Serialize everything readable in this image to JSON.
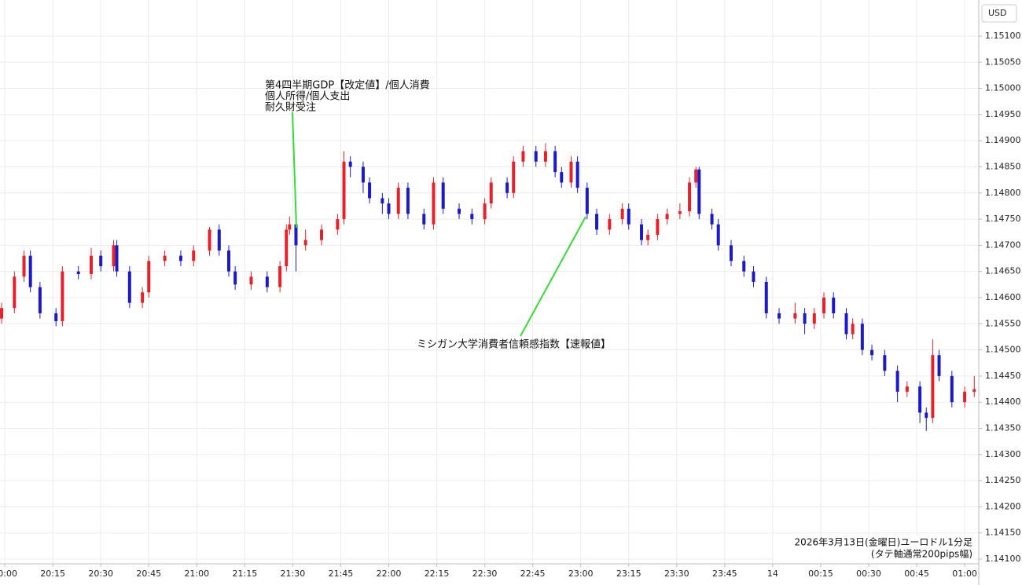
{
  "chart_data": {
    "type": "candlestick",
    "currency": "USD",
    "up_color": "#e8202a",
    "down_color": "#1a1ac8",
    "grid": true,
    "xlim": [
      -1.5,
      304.4
    ],
    "ylim": [
      1.14091,
      1.15169
    ],
    "xticks": [
      {
        "value": 0,
        "label": "20:00"
      },
      {
        "value": 15,
        "label": "20:15"
      },
      {
        "value": 30,
        "label": "20:30"
      },
      {
        "value": 45,
        "label": "20:45"
      },
      {
        "value": 60,
        "label": "21:00"
      },
      {
        "value": 75,
        "label": "21:15"
      },
      {
        "value": 90,
        "label": "21:30"
      },
      {
        "value": 105,
        "label": "21:45"
      },
      {
        "value": 120,
        "label": "22:00"
      },
      {
        "value": 135,
        "label": "22:15"
      },
      {
        "value": 150,
        "label": "22:30"
      },
      {
        "value": 165,
        "label": "22:45"
      },
      {
        "value": 180,
        "label": "23:00"
      },
      {
        "value": 195,
        "label": "23:15"
      },
      {
        "value": 210,
        "label": "23:30"
      },
      {
        "value": 225,
        "label": "23:45"
      },
      {
        "value": 240,
        "label": "14"
      },
      {
        "value": 255,
        "label": "00:15"
      },
      {
        "value": 270,
        "label": "00:30"
      },
      {
        "value": 285,
        "label": "00:45"
      },
      {
        "value": 300,
        "label": "01:00"
      }
    ],
    "yticks": [
      {
        "value": 1.141,
        "label": "1.14100"
      },
      {
        "value": 1.1415,
        "label": "1.14150"
      },
      {
        "value": 1.142,
        "label": "1.14200"
      },
      {
        "value": 1.1425,
        "label": "1.14250"
      },
      {
        "value": 1.143,
        "label": "1.14300"
      },
      {
        "value": 1.1435,
        "label": "1.14350"
      },
      {
        "value": 1.144,
        "label": "1.14400"
      },
      {
        "value": 1.1445,
        "label": "1.14450"
      },
      {
        "value": 1.145,
        "label": "1.14500"
      },
      {
        "value": 1.1455,
        "label": "1.14550"
      },
      {
        "value": 1.146,
        "label": "1.14600"
      },
      {
        "value": 1.1465,
        "label": "1.14650"
      },
      {
        "value": 1.147,
        "label": "1.14700"
      },
      {
        "value": 1.1475,
        "label": "1.14750"
      },
      {
        "value": 1.148,
        "label": "1.14800"
      },
      {
        "value": 1.1485,
        "label": "1.14850"
      },
      {
        "value": 1.149,
        "label": "1.14900"
      },
      {
        "value": 1.1495,
        "label": "1.14950"
      },
      {
        "value": 1.15,
        "label": "1.15000"
      },
      {
        "value": 1.1505,
        "label": "1.15050"
      },
      {
        "value": 1.151,
        "label": "1.15100"
      }
    ],
    "x": [
      -1,
      3,
      6,
      8,
      11,
      16,
      18,
      23,
      27,
      30,
      34,
      35,
      39,
      43,
      45,
      50,
      55,
      59,
      64,
      67,
      70,
      72,
      77,
      82,
      86,
      88,
      89,
      91,
      94,
      99,
      104,
      106,
      108,
      112,
      114,
      118,
      120,
      123,
      126,
      131,
      134,
      137,
      142,
      146,
      150,
      152,
      157,
      159,
      162,
      166,
      169,
      172,
      174,
      177,
      179,
      182,
      185,
      189,
      193,
      195,
      199,
      201,
      204,
      207,
      211,
      214,
      216,
      217,
      221,
      223,
      227,
      231,
      234,
      238,
      242,
      247,
      250,
      253,
      256,
      259,
      263,
      265,
      268,
      271,
      275,
      279,
      282,
      286,
      288,
      290,
      292,
      296,
      300,
      303
    ],
    "open": [
      1.1456,
      1.1458,
      1.1464,
      1.1468,
      1.1462,
      1.1457,
      1.14555,
      1.1465,
      1.14645,
      1.1468,
      1.1466,
      1.147,
      1.1465,
      1.1459,
      1.1461,
      1.1467,
      1.1468,
      1.1467,
      1.1469,
      1.1473,
      1.1469,
      1.1465,
      1.14625,
      1.1464,
      1.1462,
      1.1466,
      1.1473,
      1.1474,
      1.147,
      1.1471,
      1.1473,
      1.1475,
      1.1486,
      1.1485,
      1.1482,
      1.1479,
      1.1478,
      1.1476,
      1.1481,
      1.1476,
      1.1474,
      1.1482,
      1.1477,
      1.1476,
      1.1475,
      1.1478,
      1.1482,
      1.148,
      1.1486,
      1.1488,
      1.1486,
      1.1488,
      1.1484,
      1.1482,
      1.1486,
      1.1481,
      1.1476,
      1.1473,
      1.1475,
      1.1477,
      1.1474,
      1.1471,
      1.1472,
      1.1475,
      1.1476,
      1.14765,
      1.1482,
      1.14845,
      1.1476,
      1.1474,
      1.147,
      1.1467,
      1.1465,
      1.1463,
      1.1457,
      1.1456,
      1.1457,
      1.1455,
      1.1457,
      1.146,
      1.1457,
      1.1453,
      1.1455,
      1.145,
      1.1449,
      1.1446,
      1.1442,
      1.1443,
      1.1438,
      1.1437,
      1.1449,
      1.1445,
      1.144,
      1.1442
    ],
    "high": [
      1.1459,
      1.1465,
      1.1469,
      1.1469,
      1.1463,
      1.1458,
      1.1466,
      1.1466,
      1.14695,
      1.1469,
      1.1471,
      1.1471,
      1.1466,
      1.1462,
      1.1468,
      1.1469,
      1.1469,
      1.147,
      1.14735,
      1.1474,
      1.147,
      1.1466,
      1.1465,
      1.1465,
      1.1467,
      1.1474,
      1.14755,
      1.1475,
      1.1473,
      1.1474,
      1.1476,
      1.1488,
      1.1487,
      1.1486,
      1.1483,
      1.148,
      1.1479,
      1.1482,
      1.1482,
      1.1477,
      1.1483,
      1.1483,
      1.1478,
      1.1477,
      1.1479,
      1.1483,
      1.1483,
      1.1487,
      1.1489,
      1.1489,
      1.14895,
      1.1489,
      1.1485,
      1.1487,
      1.1487,
      1.1482,
      1.1477,
      1.1476,
      1.1478,
      1.1478,
      1.1475,
      1.1473,
      1.1476,
      1.1477,
      1.1478,
      1.1483,
      1.1485,
      1.1485,
      1.1477,
      1.1475,
      1.1471,
      1.1468,
      1.1466,
      1.1464,
      1.1458,
      1.1459,
      1.1458,
      1.1458,
      1.1461,
      1.1461,
      1.1458,
      1.1456,
      1.1456,
      1.1451,
      1.145,
      1.1447,
      1.1444,
      1.1444,
      1.1439,
      1.1452,
      1.145,
      1.1446,
      1.1443,
      1.1445
    ],
    "low": [
      1.1455,
      1.1457,
      1.1463,
      1.1461,
      1.1456,
      1.14545,
      1.14545,
      1.14635,
      1.14635,
      1.1465,
      1.1465,
      1.1464,
      1.1458,
      1.1458,
      1.146,
      1.1466,
      1.1466,
      1.1466,
      1.1468,
      1.1468,
      1.1464,
      1.14615,
      1.14615,
      1.1461,
      1.1461,
      1.1465,
      1.1472,
      1.1465,
      1.1469,
      1.147,
      1.1472,
      1.1474,
      1.1483,
      1.148,
      1.1478,
      1.1476,
      1.1475,
      1.1475,
      1.1475,
      1.1473,
      1.1473,
      1.1476,
      1.1475,
      1.1474,
      1.1474,
      1.1477,
      1.1479,
      1.1479,
      1.1485,
      1.1485,
      1.1485,
      1.1483,
      1.1481,
      1.1481,
      1.148,
      1.1475,
      1.1472,
      1.1472,
      1.1474,
      1.1473,
      1.147,
      1.147,
      1.1471,
      1.1474,
      1.1475,
      1.14755,
      1.1481,
      1.1475,
      1.1473,
      1.1469,
      1.1466,
      1.1464,
      1.1462,
      1.1456,
      1.1455,
      1.1455,
      1.1453,
      1.1454,
      1.1456,
      1.1456,
      1.1452,
      1.1452,
      1.1449,
      1.1448,
      1.1445,
      1.144,
      1.1441,
      1.1436,
      1.14345,
      1.1436,
      1.1444,
      1.1439,
      1.1439,
      1.1441
    ],
    "close": [
      1.1458,
      1.1464,
      1.1468,
      1.1462,
      1.1457,
      1.14555,
      1.1465,
      1.14645,
      1.1468,
      1.1466,
      1.147,
      1.1465,
      1.1459,
      1.1461,
      1.1467,
      1.1468,
      1.1467,
      1.1469,
      1.1473,
      1.1469,
      1.1465,
      1.14625,
      1.1464,
      1.1462,
      1.1466,
      1.1473,
      1.1474,
      1.147,
      1.1471,
      1.1473,
      1.1475,
      1.1486,
      1.1485,
      1.1482,
      1.1479,
      1.1478,
      1.1476,
      1.1481,
      1.1476,
      1.1474,
      1.1482,
      1.1477,
      1.1476,
      1.1475,
      1.1478,
      1.1482,
      1.148,
      1.1486,
      1.1488,
      1.1486,
      1.1488,
      1.1484,
      1.1482,
      1.1486,
      1.1481,
      1.1476,
      1.1473,
      1.1475,
      1.1477,
      1.1474,
      1.1471,
      1.1472,
      1.1475,
      1.1476,
      1.14765,
      1.1482,
      1.14845,
      1.1476,
      1.1474,
      1.147,
      1.1467,
      1.1465,
      1.1463,
      1.1457,
      1.1456,
      1.1457,
      1.1455,
      1.1457,
      1.146,
      1.1457,
      1.1453,
      1.1455,
      1.145,
      1.1449,
      1.1446,
      1.1442,
      1.1443,
      1.1438,
      1.1437,
      1.1449,
      1.1445,
      1.144,
      1.1442,
      1.14425
    ],
    "annotations": [
      {
        "lines": [
          "第4四半期GDP【改定値】/個人消費",
          "個人所得/個人支出",
          "耐久財受注"
        ]
      },
      {
        "lines": [
          "ミシガン大学消費者信頼感指数【速報値】"
        ]
      }
    ],
    "note": [
      "2026年3月13日(金曜日)ユーロドル1分足",
      "(タテ軸通常200pips幅)"
    ]
  }
}
